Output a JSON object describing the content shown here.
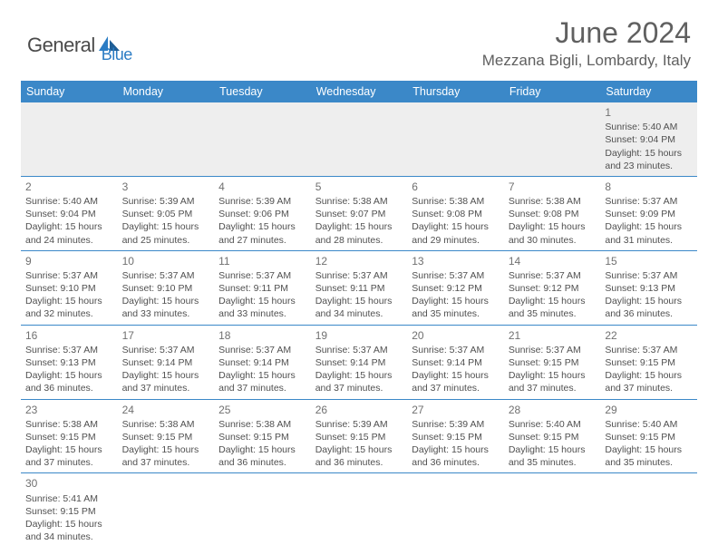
{
  "logo": {
    "part1": "General",
    "part2": "Blue"
  },
  "title": "June 2024",
  "location": "Mezzana Bigli, Lombardy, Italy",
  "colors": {
    "header_bg": "#3b88c8",
    "header_text": "#ffffff",
    "logo_gray": "#4a4a4a",
    "logo_blue": "#2b7cc4",
    "title_color": "#606060",
    "cell_text": "#505050",
    "border": "#3b88c8",
    "firstrow_bg": "#eeeeee"
  },
  "weekdays": [
    "Sunday",
    "Monday",
    "Tuesday",
    "Wednesday",
    "Thursday",
    "Friday",
    "Saturday"
  ],
  "weeks": [
    [
      null,
      null,
      null,
      null,
      null,
      null,
      {
        "d": "1",
        "sr": "5:40 AM",
        "ss": "9:04 PM",
        "dl": "15 hours and 23 minutes."
      }
    ],
    [
      {
        "d": "2",
        "sr": "5:40 AM",
        "ss": "9:04 PM",
        "dl": "15 hours and 24 minutes."
      },
      {
        "d": "3",
        "sr": "5:39 AM",
        "ss": "9:05 PM",
        "dl": "15 hours and 25 minutes."
      },
      {
        "d": "4",
        "sr": "5:39 AM",
        "ss": "9:06 PM",
        "dl": "15 hours and 27 minutes."
      },
      {
        "d": "5",
        "sr": "5:38 AM",
        "ss": "9:07 PM",
        "dl": "15 hours and 28 minutes."
      },
      {
        "d": "6",
        "sr": "5:38 AM",
        "ss": "9:08 PM",
        "dl": "15 hours and 29 minutes."
      },
      {
        "d": "7",
        "sr": "5:38 AM",
        "ss": "9:08 PM",
        "dl": "15 hours and 30 minutes."
      },
      {
        "d": "8",
        "sr": "5:37 AM",
        "ss": "9:09 PM",
        "dl": "15 hours and 31 minutes."
      }
    ],
    [
      {
        "d": "9",
        "sr": "5:37 AM",
        "ss": "9:10 PM",
        "dl": "15 hours and 32 minutes."
      },
      {
        "d": "10",
        "sr": "5:37 AM",
        "ss": "9:10 PM",
        "dl": "15 hours and 33 minutes."
      },
      {
        "d": "11",
        "sr": "5:37 AM",
        "ss": "9:11 PM",
        "dl": "15 hours and 33 minutes."
      },
      {
        "d": "12",
        "sr": "5:37 AM",
        "ss": "9:11 PM",
        "dl": "15 hours and 34 minutes."
      },
      {
        "d": "13",
        "sr": "5:37 AM",
        "ss": "9:12 PM",
        "dl": "15 hours and 35 minutes."
      },
      {
        "d": "14",
        "sr": "5:37 AM",
        "ss": "9:12 PM",
        "dl": "15 hours and 35 minutes."
      },
      {
        "d": "15",
        "sr": "5:37 AM",
        "ss": "9:13 PM",
        "dl": "15 hours and 36 minutes."
      }
    ],
    [
      {
        "d": "16",
        "sr": "5:37 AM",
        "ss": "9:13 PM",
        "dl": "15 hours and 36 minutes."
      },
      {
        "d": "17",
        "sr": "5:37 AM",
        "ss": "9:14 PM",
        "dl": "15 hours and 37 minutes."
      },
      {
        "d": "18",
        "sr": "5:37 AM",
        "ss": "9:14 PM",
        "dl": "15 hours and 37 minutes."
      },
      {
        "d": "19",
        "sr": "5:37 AM",
        "ss": "9:14 PM",
        "dl": "15 hours and 37 minutes."
      },
      {
        "d": "20",
        "sr": "5:37 AM",
        "ss": "9:14 PM",
        "dl": "15 hours and 37 minutes."
      },
      {
        "d": "21",
        "sr": "5:37 AM",
        "ss": "9:15 PM",
        "dl": "15 hours and 37 minutes."
      },
      {
        "d": "22",
        "sr": "5:37 AM",
        "ss": "9:15 PM",
        "dl": "15 hours and 37 minutes."
      }
    ],
    [
      {
        "d": "23",
        "sr": "5:38 AM",
        "ss": "9:15 PM",
        "dl": "15 hours and 37 minutes."
      },
      {
        "d": "24",
        "sr": "5:38 AM",
        "ss": "9:15 PM",
        "dl": "15 hours and 37 minutes."
      },
      {
        "d": "25",
        "sr": "5:38 AM",
        "ss": "9:15 PM",
        "dl": "15 hours and 36 minutes."
      },
      {
        "d": "26",
        "sr": "5:39 AM",
        "ss": "9:15 PM",
        "dl": "15 hours and 36 minutes."
      },
      {
        "d": "27",
        "sr": "5:39 AM",
        "ss": "9:15 PM",
        "dl": "15 hours and 36 minutes."
      },
      {
        "d": "28",
        "sr": "5:40 AM",
        "ss": "9:15 PM",
        "dl": "15 hours and 35 minutes."
      },
      {
        "d": "29",
        "sr": "5:40 AM",
        "ss": "9:15 PM",
        "dl": "15 hours and 35 minutes."
      }
    ],
    [
      {
        "d": "30",
        "sr": "5:41 AM",
        "ss": "9:15 PM",
        "dl": "15 hours and 34 minutes."
      },
      null,
      null,
      null,
      null,
      null,
      null
    ]
  ],
  "labels": {
    "sunrise": "Sunrise:",
    "sunset": "Sunset:",
    "daylight": "Daylight:"
  }
}
